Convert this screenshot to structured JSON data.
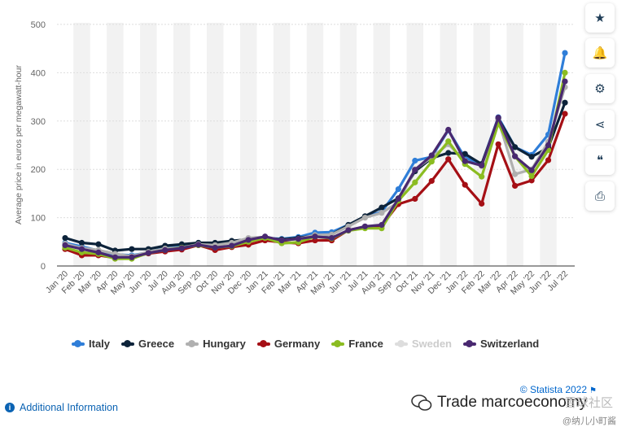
{
  "chart_data": {
    "type": "line",
    "title": "",
    "xlabel": "",
    "ylabel": "Average price in euros per megawatt-hour",
    "ylim": [
      0,
      500
    ],
    "yticks": [
      0,
      100,
      200,
      300,
      400,
      500
    ],
    "grid": true,
    "legend_position": "bottom",
    "categories": [
      "Jan '20",
      "Feb '20",
      "Mar '20",
      "Apr '20",
      "May '20",
      "Jun '20",
      "Jul '20",
      "Aug '20",
      "Sep '20",
      "Oct '20",
      "Nov '20",
      "Dec '20",
      "Jan '21",
      "Feb '21",
      "Mar '21",
      "Apr '21",
      "May '21",
      "Jun '21",
      "Jul '21",
      "Aug '21",
      "Sep '21",
      "Oct '21",
      "Nov '21",
      "Dec '21",
      "Jan '22",
      "Feb '22",
      "Mar '22",
      "Apr '22",
      "May '22",
      "Jun '22",
      "Jul '22"
    ],
    "series": [
      {
        "name": "Italy",
        "color": "#2f7ed8",
        "visible": true,
        "values": [
          48,
          40,
          32,
          24,
          22,
          28,
          38,
          40,
          48,
          45,
          49,
          55,
          58,
          56,
          60,
          69,
          70,
          85,
          102,
          112,
          159,
          218,
          226,
          281,
          224,
          211,
          308,
          246,
          230,
          272,
          441
        ]
      },
      {
        "name": "Greece",
        "color": "#0d233a",
        "visible": true,
        "values": [
          58,
          48,
          45,
          32,
          35,
          35,
          42,
          45,
          48,
          48,
          52,
          55,
          58,
          55,
          58,
          63,
          65,
          85,
          103,
          121,
          140,
          196,
          223,
          234,
          232,
          211,
          305,
          246,
          226,
          245,
          338
        ]
      },
      {
        "name": "Hungary",
        "color": "#b0b0b0",
        "visible": true,
        "values": [
          46,
          37,
          33,
          25,
          20,
          29,
          36,
          38,
          45,
          43,
          48,
          58,
          60,
          53,
          56,
          64,
          65,
          82,
          100,
          110,
          132,
          200,
          225,
          252,
          218,
          207,
          302,
          190,
          200,
          257,
          370
        ]
      },
      {
        "name": "Germany",
        "color": "#a50f15",
        "visible": true,
        "values": [
          35,
          22,
          22,
          17,
          18,
          26,
          30,
          34,
          43,
          33,
          39,
          44,
          53,
          49,
          47,
          53,
          53,
          74,
          81,
          83,
          128,
          139,
          176,
          221,
          168,
          129,
          252,
          166,
          177,
          219,
          315
        ]
      },
      {
        "name": "France",
        "color": "#8bbc21",
        "visible": true,
        "values": [
          38,
          28,
          25,
          15,
          15,
          27,
          33,
          38,
          43,
          38,
          41,
          50,
          58,
          47,
          49,
          61,
          57,
          73,
          78,
          78,
          135,
          173,
          216,
          258,
          211,
          185,
          295,
          227,
          186,
          240,
          400
        ]
      },
      {
        "name": "Sweden",
        "color": "#dddddd",
        "visible": false,
        "values": [
          20,
          15,
          12,
          8,
          10,
          12,
          15,
          18,
          20,
          25,
          28,
          40,
          45,
          40,
          35,
          40,
          35,
          30,
          40,
          50,
          80,
          90,
          110,
          140,
          90,
          80,
          100,
          70,
          60,
          70,
          80
        ]
      },
      {
        "name": "Switzerland",
        "color": "#492970",
        "visible": true,
        "values": [
          43,
          35,
          28,
          18,
          18,
          27,
          33,
          37,
          44,
          38,
          42,
          54,
          61,
          53,
          56,
          61,
          58,
          74,
          82,
          85,
          139,
          199,
          229,
          282,
          217,
          208,
          307,
          227,
          198,
          250,
          382
        ]
      }
    ]
  },
  "legend": [
    {
      "label": "Italy",
      "color": "#2f7ed8"
    },
    {
      "label": "Greece",
      "color": "#0d233a"
    },
    {
      "label": "Hungary",
      "color": "#b0b0b0"
    },
    {
      "label": "Germany",
      "color": "#a50f15"
    },
    {
      "label": "France",
      "color": "#8bbc21"
    },
    {
      "label": "Sweden",
      "color": "#dddddd"
    },
    {
      "label": "Switzerland",
      "color": "#492970"
    }
  ],
  "footer": {
    "credit": "© Statista 2022",
    "additional_info": "Additional Information",
    "watermark": "Trade marcoeconomy",
    "watermark_sub": "@纳儿小町酱",
    "watermark_sub2": "雪球社区"
  },
  "toolbar": {
    "icons": [
      "star-icon",
      "bell-icon",
      "gear-icon",
      "share-icon",
      "quote-icon",
      "print-icon"
    ],
    "glyphs": [
      "★",
      "🔔",
      "⚙",
      "⋖",
      "❝",
      "⎙"
    ]
  }
}
